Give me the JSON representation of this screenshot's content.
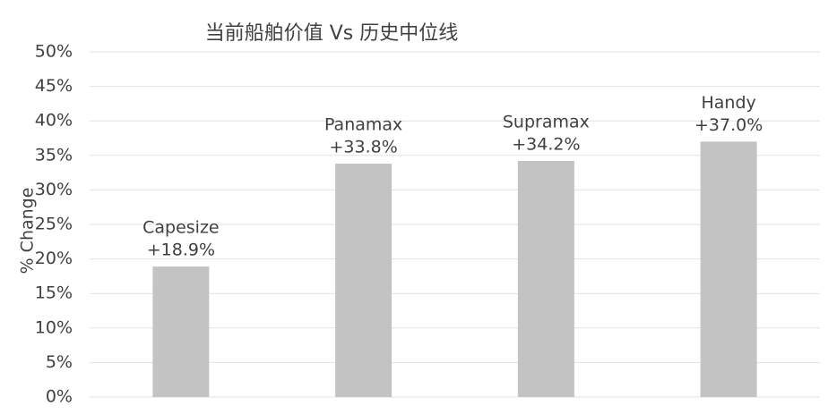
{
  "chart_data": {
    "type": "bar",
    "title": "当前船舶价值 Vs 历史中位线",
    "y_label": "% Change",
    "categories": [
      "Capesize",
      "Panamax",
      "Supramax",
      "Handy"
    ],
    "values": [
      18.9,
      33.8,
      34.2,
      37.0
    ],
    "value_labels": [
      "+18.9%",
      "+33.8%",
      "+34.2%",
      "+37.0%"
    ],
    "color": "#c3c3c3",
    "ylim": [
      0,
      50
    ],
    "yticks": [
      {
        "value": 0,
        "label": "0%"
      },
      {
        "value": 5,
        "label": "5%"
      },
      {
        "value": 10,
        "label": "10%"
      },
      {
        "value": 15,
        "label": "15%"
      },
      {
        "value": 20,
        "label": "20%"
      },
      {
        "value": 25,
        "label": "25%"
      },
      {
        "value": 30,
        "label": "30%"
      },
      {
        "value": 35,
        "label": "35%"
      },
      {
        "value": 40,
        "label": "40%"
      },
      {
        "value": 45,
        "label": "45%"
      },
      {
        "value": 50,
        "label": "50%"
      }
    ],
    "grid": true
  }
}
